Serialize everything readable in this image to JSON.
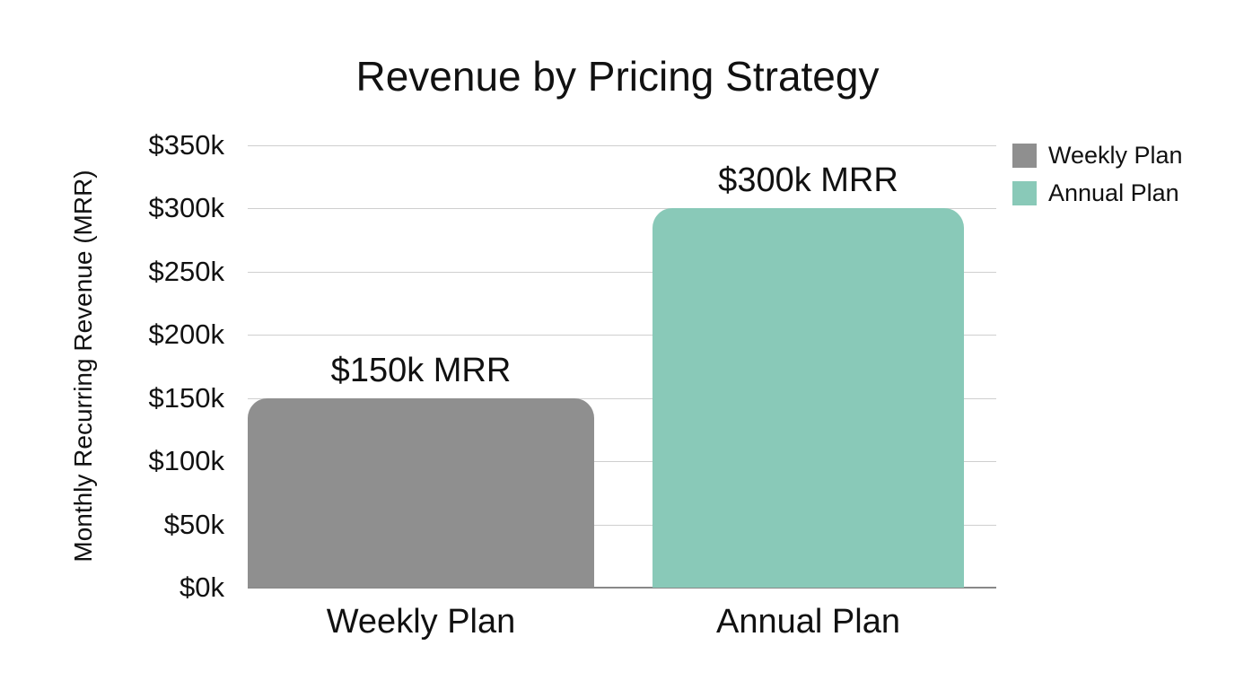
{
  "chart_data": {
    "type": "bar",
    "title": "Revenue by Pricing Strategy",
    "xlabel": "",
    "ylabel": "Monthly Recurring Revenue (MRR)",
    "categories": [
      "Weekly Plan",
      "Annual Plan"
    ],
    "values": [
      150,
      300
    ],
    "value_unit": "k USD",
    "data_labels": [
      "$150k MRR",
      "$300k MRR"
    ],
    "colors": [
      "#8f8f8f",
      "#89c9b8"
    ],
    "ylim": [
      0,
      350
    ],
    "yticks": [
      "$0k",
      "$50k",
      "$100k",
      "$150k",
      "$200k",
      "$250k",
      "$300k",
      "$350k"
    ],
    "grid": true,
    "legend": {
      "position": "right",
      "entries": [
        {
          "label": "Weekly Plan",
          "color": "#8f8f8f"
        },
        {
          "label": "Annual Plan",
          "color": "#89c9b8"
        }
      ]
    }
  }
}
